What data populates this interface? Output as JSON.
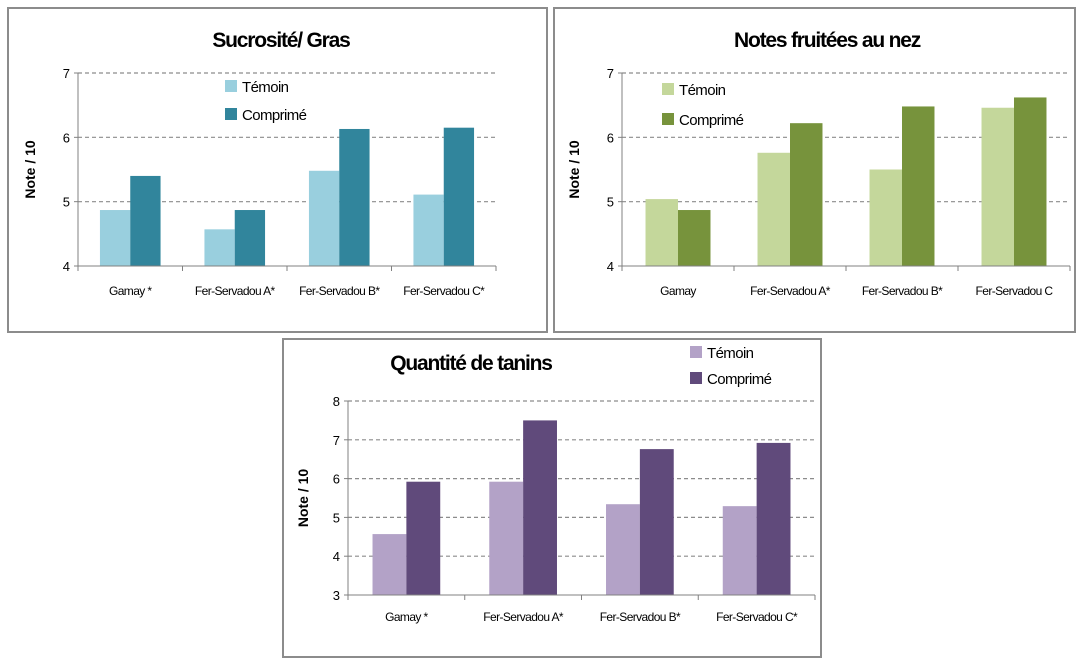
{
  "chart_data": [
    {
      "type": "bar",
      "title": "Sucrosité/ Gras",
      "ylabel": "Note / 10",
      "ylim": [
        4,
        7
      ],
      "yticks": [
        "4",
        "5",
        "6",
        "7"
      ],
      "grid": true,
      "legend": "top-center",
      "categories": [
        "Gamay *",
        "Fer-Servadou A*",
        "Fer-Servadou B*",
        "Fer-Servadou C*"
      ],
      "series": [
        {
          "name": "Témoin",
          "color": "#99cfde",
          "values": [
            4.87,
            4.57,
            5.48,
            5.11
          ]
        },
        {
          "name": "Comprimé",
          "color": "#31859c",
          "values": [
            5.4,
            4.87,
            6.13,
            6.15
          ]
        }
      ]
    },
    {
      "type": "bar",
      "title": "Notes fruitées au nez",
      "ylabel": "Note / 10",
      "ylim": [
        4,
        7
      ],
      "yticks": [
        "4",
        "5",
        "6",
        "7"
      ],
      "grid": true,
      "legend": "top-left",
      "categories": [
        "Gamay",
        "Fer-Servadou A*",
        "Fer-Servadou B*",
        "Fer-Servadou C"
      ],
      "series": [
        {
          "name": "Témoin",
          "color": "#c4d79b",
          "values": [
            5.04,
            5.76,
            5.5,
            6.46
          ]
        },
        {
          "name": "Comprimé",
          "color": "#77933c",
          "values": [
            4.87,
            6.22,
            6.48,
            6.62
          ]
        }
      ]
    },
    {
      "type": "bar",
      "title": "Quantité de tanins",
      "ylabel": "Note / 10",
      "ylim": [
        3,
        8
      ],
      "yticks": [
        "3",
        "4",
        "5",
        "6",
        "7",
        "8"
      ],
      "grid": true,
      "legend": "top-right",
      "categories": [
        "Gamay *",
        "Fer-Servadou A*",
        "Fer-Servadou B*",
        "Fer-Servadou C*"
      ],
      "series": [
        {
          "name": "Témoin",
          "color": "#b3a2c7",
          "values": [
            4.57,
            5.92,
            5.34,
            5.29
          ]
        },
        {
          "name": "Comprimé",
          "color": "#604a7b",
          "values": [
            5.92,
            7.5,
            6.76,
            6.92
          ]
        }
      ]
    }
  ]
}
